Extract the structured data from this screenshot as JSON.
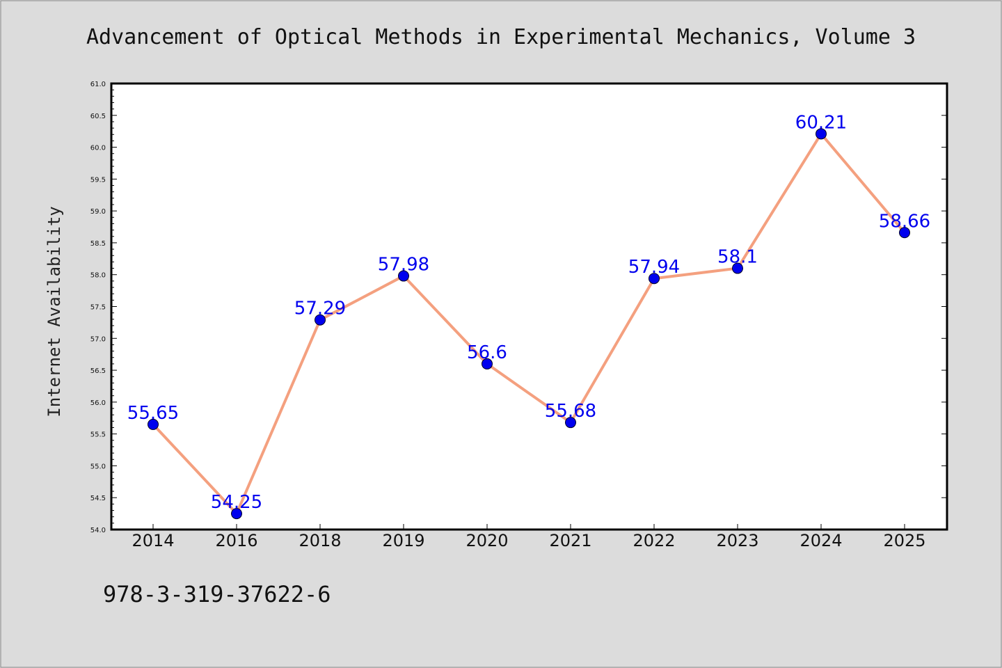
{
  "chart_data": {
    "type": "line",
    "title": "Advancement of Optical Methods in Experimental Mechanics, Volume 3",
    "xlabel": "",
    "ylabel": "Internet Availability",
    "categories": [
      "2014",
      "2016",
      "2018",
      "2019",
      "2020",
      "2021",
      "2022",
      "2023",
      "2024",
      "2025"
    ],
    "series": [
      {
        "values": [
          55.65,
          54.25,
          57.29,
          57.98,
          56.6,
          55.68,
          57.94,
          58.1,
          60.21,
          58.66
        ],
        "data_labels": [
          "55.65",
          "54.25",
          "57.29",
          "57.98",
          "56.6",
          "55.68",
          "57.94",
          "58.1",
          "60.21",
          "58.66"
        ]
      }
    ],
    "ylim": [
      54.0,
      61.0
    ],
    "yticks": [
      "54.0",
      "54.5",
      "55.0",
      "55.5",
      "56.0",
      "56.5",
      "57.0",
      "57.5",
      "58.0",
      "58.5",
      "59.0",
      "59.5",
      "60.0",
      "60.5",
      "61.0"
    ],
    "grid": false,
    "legend": "none"
  },
  "footer_text": "978-3-319-37622-6",
  "colors": {
    "background": "#dcdcdc",
    "plot_area": "#ffffff",
    "line": "#f4a07f",
    "marker": "#0000ee",
    "data_label": "#0000ee"
  }
}
